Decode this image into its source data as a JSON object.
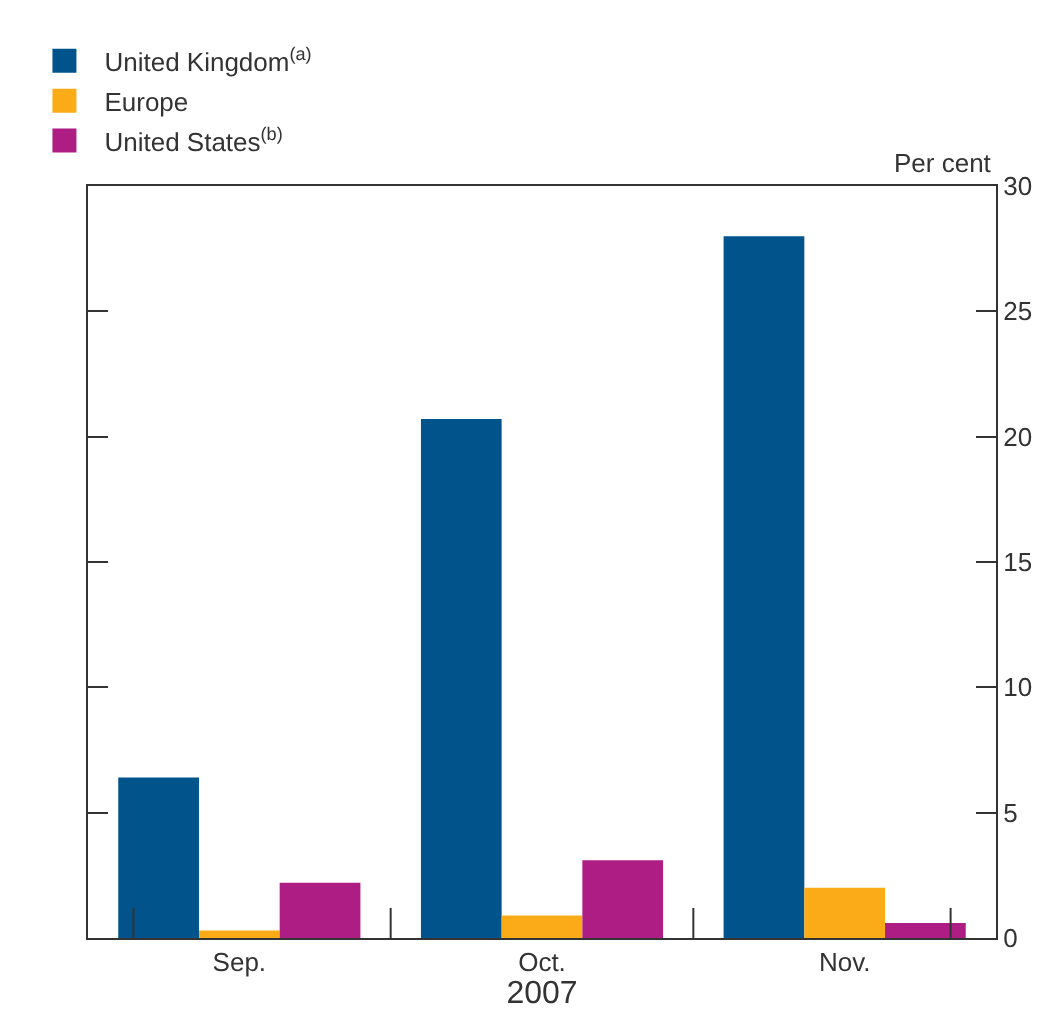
{
  "chart_data": {
    "type": "bar",
    "categories": [
      "Sep.",
      "Oct.",
      "Nov."
    ],
    "xlabel": "2007",
    "ylabel": "Per cent",
    "series": [
      {
        "name": "United Kingdom$^{(a)}$",
        "color": "#00548b",
        "values": [
          6.4,
          20.7,
          28.0
        ]
      },
      {
        "name": "Europe",
        "color": "#fbab18",
        "values": [
          0.3,
          0.9,
          2.0
        ]
      },
      {
        "name": "United States$^{(b)}$",
        "color": "#ae1d84",
        "values": [
          2.2,
          3.1,
          0.6
        ]
      }
    ],
    "ylim": [
      0,
      30
    ],
    "yticks": [
      0,
      5,
      10,
      15,
      20,
      25,
      30
    ],
    "legend": "top left"
  }
}
